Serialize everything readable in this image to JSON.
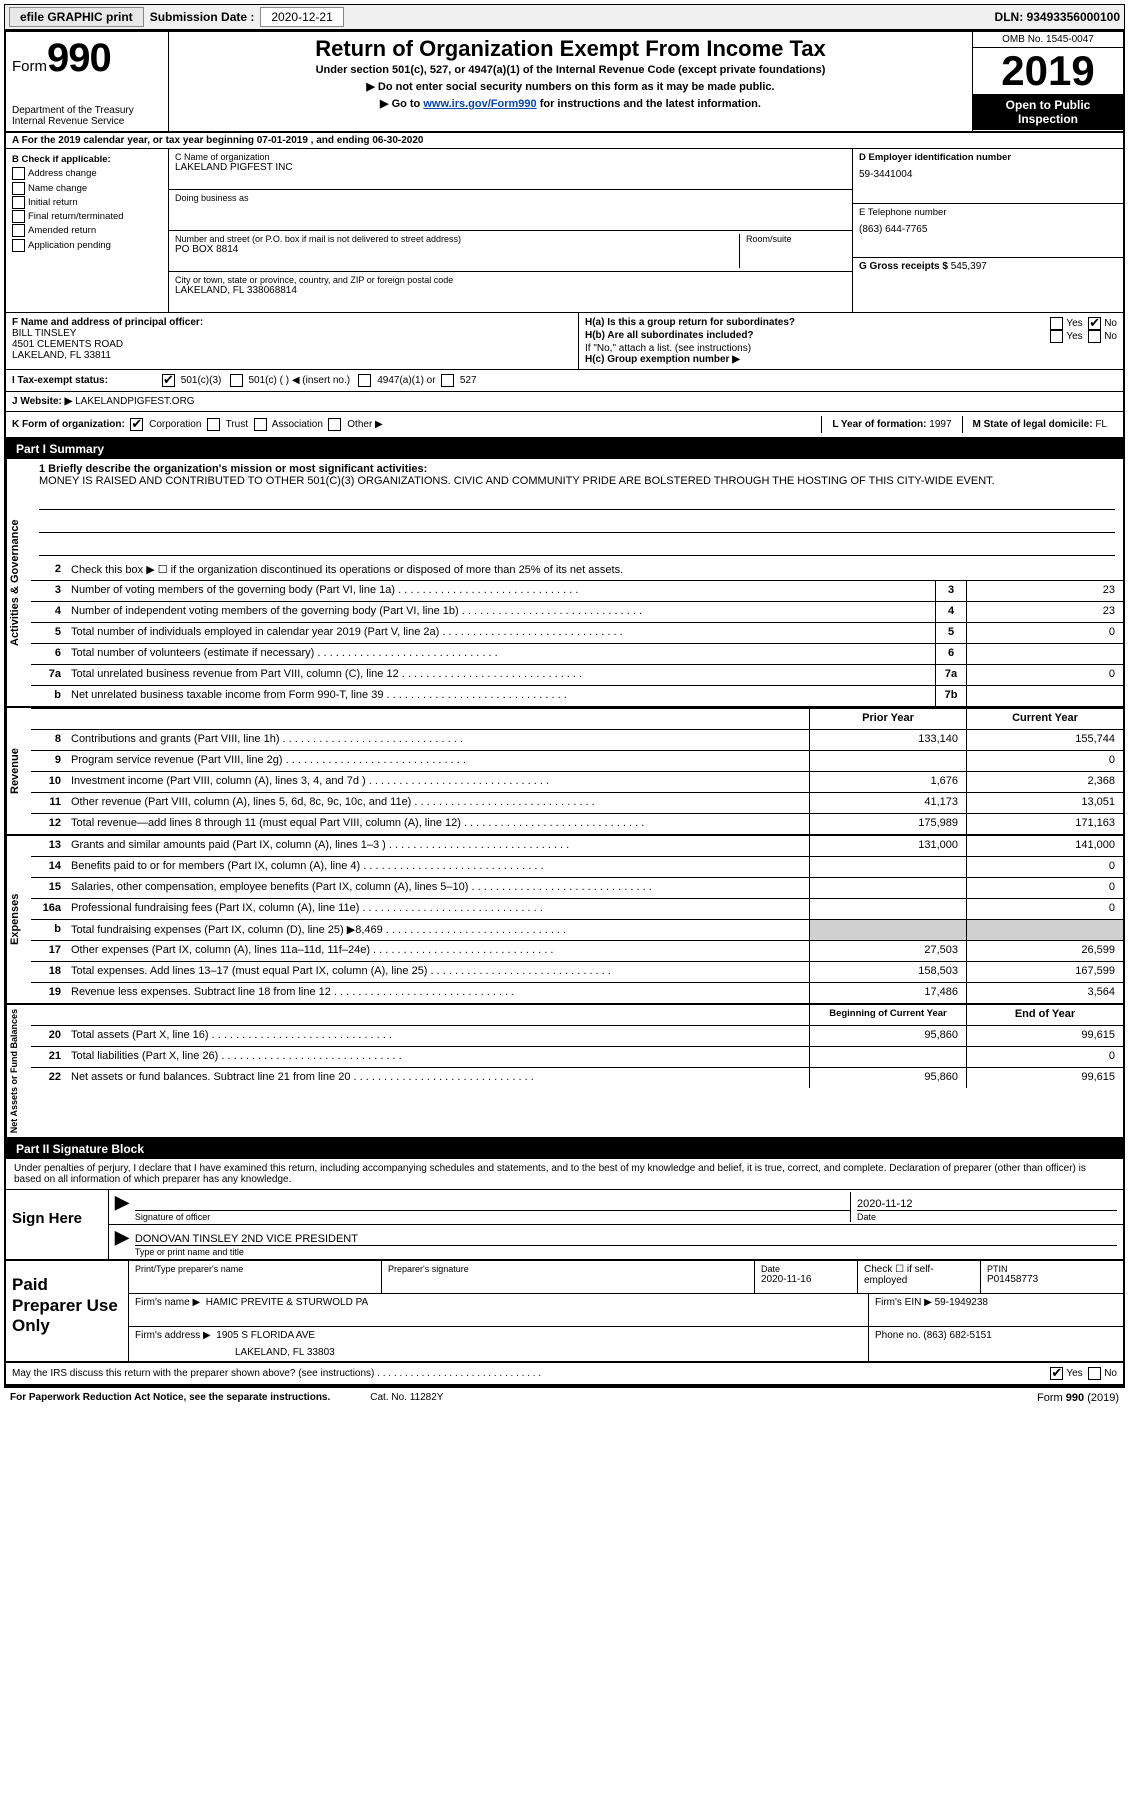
{
  "topbar": {
    "efile": "efile GRAPHIC print",
    "submission_label": "Submission Date :",
    "submission_date": "2020-12-21",
    "dln_label": "DLN:",
    "dln": "93493356000100"
  },
  "header": {
    "form_word": "Form",
    "form_num": "990",
    "dept1": "Department of the Treasury",
    "dept2": "Internal Revenue Service",
    "title": "Return of Organization Exempt From Income Tax",
    "sub1": "Under section 501(c), 527, or 4947(a)(1) of the Internal Revenue Code (except private foundations)",
    "sub2": "▶ Do not enter social security numbers on this form as it may be made public.",
    "sub3_pre": "▶ Go to ",
    "sub3_link": "www.irs.gov/Form990",
    "sub3_post": " for instructions and the latest information.",
    "omb": "OMB No. 1545-0047",
    "year": "2019",
    "open": "Open to Public Inspection"
  },
  "rowA": "A For the 2019 calendar year, or tax year beginning 07-01-2019   , and ending 06-30-2020",
  "boxB": {
    "label": "B Check if applicable:",
    "items": [
      "Address change",
      "Name change",
      "Initial return",
      "Final return/terminated",
      "Amended return",
      "Application pending"
    ]
  },
  "boxC": {
    "name_label": "C Name of organization",
    "name": "LAKELAND PIGFEST INC",
    "dba_label": "Doing business as",
    "street_label": "Number and street (or P.O. box if mail is not delivered to street address)",
    "room_label": "Room/suite",
    "street": "PO BOX 8814",
    "city_label": "City or town, state or province, country, and ZIP or foreign postal code",
    "city": "LAKELAND, FL  338068814"
  },
  "boxD": {
    "ein_label": "D Employer identification number",
    "ein": "59-3441004",
    "phone_label": "E Telephone number",
    "phone": "(863) 644-7765",
    "gross_label": "G Gross receipts $",
    "gross": "545,397"
  },
  "boxF": {
    "label": "F  Name and address of principal officer:",
    "name": "BILL TINSLEY",
    "addr1": "4501 CLEMENTS ROAD",
    "addr2": "LAKELAND, FL  33811"
  },
  "boxH": {
    "ha": "H(a)  Is this a group return for subordinates?",
    "hb": "H(b)  Are all subordinates included?",
    "hb_note": "If \"No,\" attach a list. (see instructions)",
    "hc": "H(c)  Group exemption number ▶",
    "yes": "Yes",
    "no": "No"
  },
  "rowI": {
    "label": "I   Tax-exempt status:",
    "opt1": "501(c)(3)",
    "opt2": "501(c) (  ) ◀ (insert no.)",
    "opt3": "4947(a)(1) or",
    "opt4": "527"
  },
  "rowJ": {
    "label": "J   Website: ▶",
    "value": "LAKELANDPIGFEST.ORG"
  },
  "rowK": {
    "label": "K Form of organization:",
    "opts": [
      "Corporation",
      "Trust",
      "Association",
      "Other ▶"
    ],
    "l_label": "L Year of formation:",
    "l_val": "1997",
    "m_label": "M State of legal domicile:",
    "m_val": "FL"
  },
  "part1": {
    "bar": "Part I      Summary",
    "q1_label": "1  Briefly describe the organization's mission or most significant activities:",
    "q1_text": "MONEY IS RAISED AND CONTRIBUTED TO OTHER 501(C)(3) ORGANIZATIONS. CIVIC AND COMMUNITY PRIDE ARE BOLSTERED THROUGH THE HOSTING OF THIS CITY-WIDE EVENT.",
    "q2": "Check this box ▶ ☐  if the organization discontinued its operations or disposed of more than 25% of its net assets.",
    "gov_rows": [
      {
        "n": "3",
        "d": "Number of voting members of the governing body (Part VI, line 1a)",
        "box": "3",
        "v": "23"
      },
      {
        "n": "4",
        "d": "Number of independent voting members of the governing body (Part VI, line 1b)",
        "box": "4",
        "v": "23"
      },
      {
        "n": "5",
        "d": "Total number of individuals employed in calendar year 2019 (Part V, line 2a)",
        "box": "5",
        "v": "0"
      },
      {
        "n": "6",
        "d": "Total number of volunteers (estimate if necessary)",
        "box": "6",
        "v": ""
      },
      {
        "n": "7a",
        "d": "Total unrelated business revenue from Part VIII, column (C), line 12",
        "box": "7a",
        "v": "0"
      },
      {
        "n": "b",
        "d": "Net unrelated business taxable income from Form 990-T, line 39",
        "box": "7b",
        "v": ""
      }
    ],
    "prior_label": "Prior Year",
    "current_label": "Current Year",
    "rev_rows": [
      {
        "n": "8",
        "d": "Contributions and grants (Part VIII, line 1h)",
        "p": "133,140",
        "c": "155,744"
      },
      {
        "n": "9",
        "d": "Program service revenue (Part VIII, line 2g)",
        "p": "",
        "c": "0"
      },
      {
        "n": "10",
        "d": "Investment income (Part VIII, column (A), lines 3, 4, and 7d )",
        "p": "1,676",
        "c": "2,368"
      },
      {
        "n": "11",
        "d": "Other revenue (Part VIII, column (A), lines 5, 6d, 8c, 9c, 10c, and 11e)",
        "p": "41,173",
        "c": "13,051"
      },
      {
        "n": "12",
        "d": "Total revenue—add lines 8 through 11 (must equal Part VIII, column (A), line 12)",
        "p": "175,989",
        "c": "171,163"
      }
    ],
    "exp_rows": [
      {
        "n": "13",
        "d": "Grants and similar amounts paid (Part IX, column (A), lines 1–3 )",
        "p": "131,000",
        "c": "141,000"
      },
      {
        "n": "14",
        "d": "Benefits paid to or for members (Part IX, column (A), line 4)",
        "p": "",
        "c": "0"
      },
      {
        "n": "15",
        "d": "Salaries, other compensation, employee benefits (Part IX, column (A), lines 5–10)",
        "p": "",
        "c": "0"
      },
      {
        "n": "16a",
        "d": "Professional fundraising fees (Part IX, column (A), line 11e)",
        "p": "",
        "c": "0"
      },
      {
        "n": "b",
        "d": "Total fundraising expenses (Part IX, column (D), line 25) ▶8,469",
        "p": "grey",
        "c": "grey"
      },
      {
        "n": "17",
        "d": "Other expenses (Part IX, column (A), lines 11a–11d, 11f–24e)",
        "p": "27,503",
        "c": "26,599"
      },
      {
        "n": "18",
        "d": "Total expenses. Add lines 13–17 (must equal Part IX, column (A), line 25)",
        "p": "158,503",
        "c": "167,599"
      },
      {
        "n": "19",
        "d": "Revenue less expenses. Subtract line 18 from line 12",
        "p": "17,486",
        "c": "3,564"
      }
    ],
    "begin_label": "Beginning of Current Year",
    "end_label": "End of Year",
    "net_rows": [
      {
        "n": "20",
        "d": "Total assets (Part X, line 16)",
        "p": "95,860",
        "c": "99,615"
      },
      {
        "n": "21",
        "d": "Total liabilities (Part X, line 26)",
        "p": "",
        "c": "0"
      },
      {
        "n": "22",
        "d": "Net assets or fund balances. Subtract line 21 from line 20",
        "p": "95,860",
        "c": "99,615"
      }
    ],
    "vlabels": {
      "gov": "Activities & Governance",
      "rev": "Revenue",
      "exp": "Expenses",
      "net": "Net Assets or Fund Balances"
    }
  },
  "part2": {
    "bar": "Part II     Signature Block",
    "intro": "Under penalties of perjury, I declare that I have examined this return, including accompanying schedules and statements, and to the best of my knowledge and belief, it is true, correct, and complete. Declaration of preparer (other than officer) is based on all information of which preparer has any knowledge.",
    "sign_here": "Sign Here",
    "sig_officer_label": "Signature of officer",
    "sig_date": "2020-11-12",
    "date_label": "Date",
    "officer_name": "DONOVAN TINSLEY 2ND VICE PRESIDENT",
    "officer_name_label": "Type or print name and title",
    "paid": "Paid Preparer Use Only",
    "pp_name_label": "Print/Type preparer's name",
    "pp_sig_label": "Preparer's signature",
    "pp_date_label": "Date",
    "pp_date": "2020-11-16",
    "pp_check_label": "Check ☐ if self-employed",
    "ptin_label": "PTIN",
    "ptin": "P01458773",
    "firm_name_label": "Firm's name    ▶",
    "firm_name": "HAMIC PREVITE & STURWOLD PA",
    "firm_ein_label": "Firm's EIN ▶",
    "firm_ein": "59-1949238",
    "firm_addr_label": "Firm's address ▶",
    "firm_addr1": "1905 S FLORIDA AVE",
    "firm_addr2": "LAKELAND, FL  33803",
    "firm_phone_label": "Phone no.",
    "firm_phone": "(863) 682-5151",
    "discuss": "May the IRS discuss this return with the preparer shown above? (see instructions)",
    "yes": "Yes",
    "no": "No"
  },
  "footer": {
    "left": "For Paperwork Reduction Act Notice, see the separate instructions.",
    "mid": "Cat. No. 11282Y",
    "right": "Form 990 (2019)"
  }
}
